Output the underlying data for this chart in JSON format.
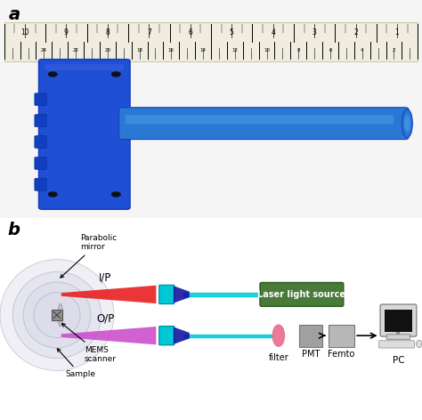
{
  "fig_width": 4.74,
  "fig_height": 4.72,
  "dpi": 100,
  "bg_color": "#ffffff",
  "panel_a_label": "a",
  "panel_b_label": "b",
  "label_fontsize": 14,
  "label_fontweight": "bold",
  "label_fontstyle": "italic",
  "ruler_bg": "#f0ece0",
  "device_blue_dark": "#1a3fbf",
  "device_blue_body": "#1e4fd4",
  "device_blue_probe": "#2878d4",
  "device_blue_probe_light": "#4a9ae0",
  "parabolic_color": "#d8d8e8",
  "mirror_label": "Parabolic\nmirror",
  "mems_label": "MEMS\nscanner",
  "sample_label": "Sample",
  "ip_label": "I/P",
  "op_label": "O/P",
  "laser_box_color": "#4a7a3a",
  "laser_box_text": "Laser light source",
  "laser_box_text_color": "#ffffff",
  "filter_color": "#e87090",
  "pmt_color": "#a0a0a0",
  "femto_color": "#b8b8b8",
  "filter_label": "filter",
  "pmt_label": "PMT",
  "femto_label": "Femto",
  "pc_label": "PC",
  "ip_beam_color": "#e82020",
  "op_beam_color": "#cc50cc",
  "cyan_color": "#00c8d8",
  "dark_blue_cone": "#1010a0",
  "connector_color": "#00c8d4",
  "arrow_color": "#222222"
}
